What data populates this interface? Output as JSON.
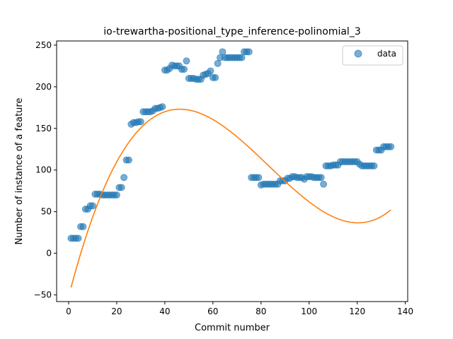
{
  "chart_data": {
    "type": "scatter",
    "title": "io-trewartha-positional_type_inference-polinomial_3",
    "xlabel": "Commit number",
    "ylabel": "Number of instance of a feature",
    "xlim": [
      -5,
      141
    ],
    "ylim": [
      -58,
      255
    ],
    "xticks": [
      0,
      20,
      40,
      60,
      80,
      100,
      120,
      140
    ],
    "yticks": [
      -50,
      0,
      50,
      100,
      150,
      200,
      250
    ],
    "grid": false,
    "legend": {
      "position": "top-right",
      "entries": [
        "data"
      ]
    },
    "colors": {
      "points": "#1f77b4",
      "fit": "#ff7f0e"
    },
    "series": [
      {
        "name": "data",
        "kind": "scatter",
        "x": [
          1,
          2,
          3,
          4,
          5,
          6,
          7,
          8,
          9,
          10,
          11,
          12,
          13,
          14,
          15,
          16,
          17,
          18,
          19,
          20,
          21,
          22,
          23,
          24,
          25,
          26,
          27,
          28,
          29,
          30,
          31,
          32,
          33,
          34,
          35,
          36,
          37,
          38,
          39,
          40,
          41,
          42,
          43,
          44,
          45,
          46,
          47,
          48,
          49,
          50,
          51,
          52,
          53,
          54,
          55,
          56,
          57,
          58,
          59,
          60,
          61,
          62,
          63,
          64,
          65,
          66,
          67,
          68,
          69,
          70,
          71,
          72,
          73,
          74,
          75,
          76,
          77,
          78,
          79,
          80,
          81,
          82,
          83,
          84,
          85,
          86,
          87,
          88,
          89,
          90,
          91,
          92,
          93,
          94,
          95,
          96,
          97,
          98,
          99,
          100,
          101,
          102,
          103,
          104,
          105,
          106,
          107,
          108,
          109,
          110,
          111,
          112,
          113,
          114,
          115,
          116,
          117,
          118,
          119,
          120,
          121,
          122,
          123,
          124,
          125,
          126,
          127,
          128,
          129,
          130,
          131,
          132,
          133,
          134
        ],
        "y": [
          18,
          18,
          18,
          18,
          32,
          32,
          53,
          53,
          57,
          57,
          71,
          71,
          71,
          70,
          70,
          70,
          70,
          70,
          70,
          70,
          79,
          79,
          91,
          112,
          112,
          155,
          157,
          157,
          158,
          158,
          170,
          170,
          170,
          170,
          171,
          174,
          174,
          175,
          176,
          220,
          220,
          222,
          226,
          225,
          225,
          225,
          221,
          221,
          231,
          210,
          210,
          210,
          209,
          209,
          209,
          214,
          215,
          216,
          219,
          211,
          211,
          228,
          235,
          242,
          235,
          235,
          235,
          235,
          235,
          235,
          235,
          235,
          242,
          242,
          242,
          91,
          91,
          91,
          91,
          82,
          83,
          83,
          83,
          83,
          83,
          83,
          83,
          87,
          87,
          87,
          90,
          90,
          92,
          92,
          91,
          91,
          91,
          89,
          92,
          92,
          92,
          91,
          91,
          91,
          91,
          83,
          105,
          105,
          105,
          106,
          106,
          106,
          110,
          110,
          110,
          110,
          110,
          110,
          110,
          110,
          107,
          105,
          105,
          105,
          105,
          105,
          105,
          124,
          124,
          124,
          128,
          128,
          128,
          128
        ]
      },
      {
        "name": "",
        "kind": "line",
        "polynomial": [
          -52.14,
          11.177,
          -0.16738,
          0.00067
        ],
        "x_range": [
          1,
          134
        ]
      }
    ]
  }
}
